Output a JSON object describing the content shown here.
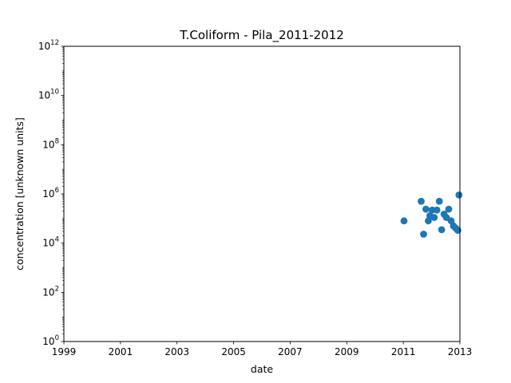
{
  "chart_data": {
    "type": "scatter",
    "title": "T.Coliform - Pila_2011-2012",
    "xlabel": "date",
    "ylabel": "concentration [unknown units]",
    "xscale": "time",
    "yscale": "log",
    "xlim": [
      "1999-01-01",
      "2013-01-01"
    ],
    "ylim": [
      1,
      1000000000000
    ],
    "xticks": [
      "1999",
      "2001",
      "2003",
      "2005",
      "2007",
      "2009",
      "2011",
      "2013"
    ],
    "yticks": [
      {
        "base": "10",
        "exp": "0",
        "value": 1
      },
      {
        "base": "10",
        "exp": "2",
        "value": 100
      },
      {
        "base": "10",
        "exp": "4",
        "value": 10000
      },
      {
        "base": "10",
        "exp": "6",
        "value": 1000000
      },
      {
        "base": "10",
        "exp": "8",
        "value": 100000000
      },
      {
        "base": "10",
        "exp": "10",
        "value": 10000000000
      },
      {
        "base": "10",
        "exp": "12",
        "value": 1000000000000
      }
    ],
    "grid": false,
    "marker_color": "#1f77b4",
    "series": [
      {
        "points": [
          {
            "x": "2011-01-10",
            "y": 80000
          },
          {
            "x": "2011-08-20",
            "y": 500000
          },
          {
            "x": "2011-09-20",
            "y": 23000
          },
          {
            "x": "2011-10-20",
            "y": 240000
          },
          {
            "x": "2011-11-20",
            "y": 80000
          },
          {
            "x": "2011-12-10",
            "y": 130000
          },
          {
            "x": "2012-01-10",
            "y": 220000
          },
          {
            "x": "2012-02-05",
            "y": 110000
          },
          {
            "x": "2012-03-10",
            "y": 220000
          },
          {
            "x": "2012-04-10",
            "y": 500000
          },
          {
            "x": "2012-05-10",
            "y": 35000
          },
          {
            "x": "2012-06-10",
            "y": 150000
          },
          {
            "x": "2012-07-10",
            "y": 110000
          },
          {
            "x": "2012-08-10",
            "y": 240000
          },
          {
            "x": "2012-09-10",
            "y": 80000
          },
          {
            "x": "2012-10-10",
            "y": 50000
          },
          {
            "x": "2012-11-10",
            "y": 40000
          },
          {
            "x": "2012-12-05",
            "y": 33000
          },
          {
            "x": "2012-12-20",
            "y": 900000
          }
        ]
      }
    ]
  }
}
